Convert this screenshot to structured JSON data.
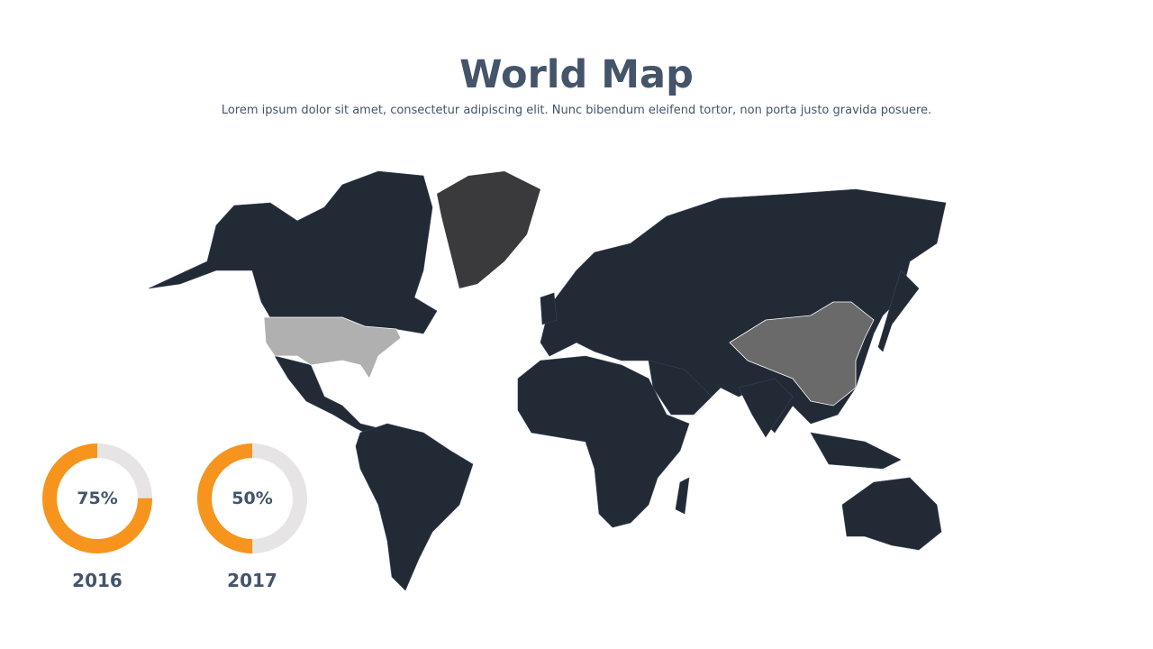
{
  "title": "World Map",
  "subtitle": "Lorem ipsum dolor sit amet, consectetur adipiscing elit. Nunc bibendum eleifend tortor, non porta justo gravida posuere.",
  "colors": {
    "land": "#222a36",
    "greenland": "#3a3a3c",
    "usa": "#b0b0b0",
    "china": "#6a6a6a",
    "accent": "#f7941d",
    "track": "#e6e4e4",
    "text": "#44546a"
  },
  "highlighted_regions": [
    "greenland",
    "usa",
    "china"
  ],
  "stats": [
    {
      "label": "75%",
      "value": 75,
      "year": "2016"
    },
    {
      "label": "50%",
      "value": 50,
      "year": "2017"
    }
  ]
}
